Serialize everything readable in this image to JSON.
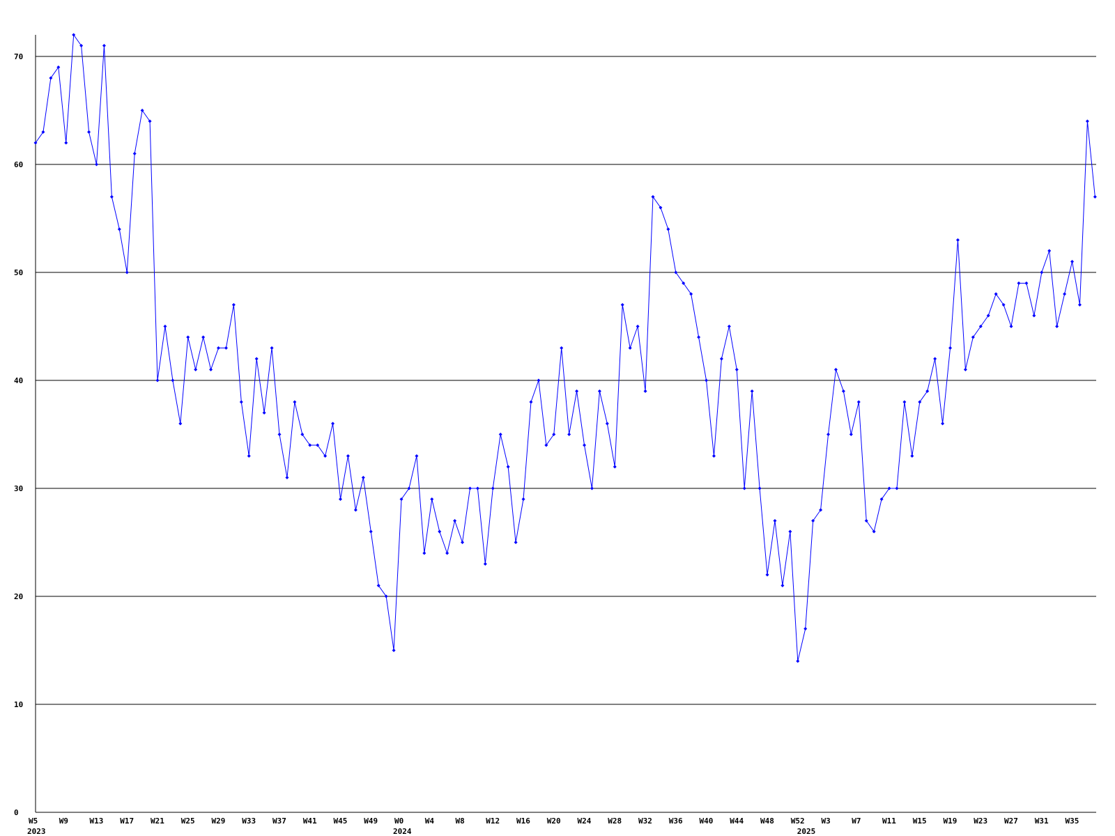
{
  "chart_data": {
    "type": "line",
    "categories": [
      "W5",
      null,
      null,
      null,
      "W9",
      null,
      null,
      null,
      "W13",
      null,
      null,
      null,
      "W17",
      null,
      null,
      null,
      "W21",
      null,
      null,
      null,
      "W25",
      null,
      null,
      null,
      "W29",
      null,
      null,
      null,
      "W33",
      null,
      null,
      null,
      "W37",
      null,
      null,
      null,
      "W41",
      null,
      null,
      null,
      "W45",
      null,
      null,
      null,
      "W49",
      null,
      null,
      null,
      "W0",
      null,
      null,
      null,
      "W4",
      null,
      null,
      null,
      "W8",
      null,
      null,
      null,
      "W12",
      null,
      null,
      null,
      "W16",
      null,
      null,
      null,
      "W20",
      null,
      null,
      null,
      "W24",
      null,
      null,
      null,
      "W28",
      null,
      null,
      null,
      "W32",
      null,
      null,
      null,
      "W36",
      null,
      null,
      null,
      "W40",
      null,
      null,
      null,
      "W44",
      null,
      null,
      null,
      "W48",
      null,
      null,
      null,
      "W52",
      null,
      null,
      null,
      "W3",
      null,
      null,
      null,
      "W7",
      null,
      null,
      null,
      "W11",
      null,
      null,
      null,
      "W15",
      null,
      null,
      null,
      "W19",
      null,
      null,
      null,
      "W23",
      null,
      null,
      null,
      "W27",
      null,
      null,
      null,
      "W31",
      null,
      null,
      null,
      "W35",
      null,
      null,
      null
    ],
    "year_labels": [
      "2023",
      null,
      null,
      null,
      null,
      null,
      null,
      null,
      null,
      null,
      null,
      null,
      null,
      null,
      null,
      null,
      null,
      null,
      null,
      null,
      null,
      null,
      null,
      null,
      null,
      null,
      null,
      null,
      null,
      null,
      null,
      null,
      null,
      null,
      null,
      null,
      null,
      null,
      null,
      null,
      null,
      null,
      null,
      null,
      null,
      null,
      null,
      null,
      "2024",
      null,
      null,
      null,
      null,
      null,
      null,
      null,
      null,
      null,
      null,
      null,
      null,
      null,
      null,
      null,
      null,
      null,
      null,
      null,
      null,
      null,
      null,
      null,
      null,
      null,
      null,
      null,
      null,
      null,
      null,
      null,
      null,
      null,
      null,
      null,
      null,
      null,
      null,
      null,
      null,
      null,
      null,
      null,
      null,
      null,
      null,
      null,
      null,
      null,
      null,
      null,
      null,
      "2025",
      null,
      null,
      null,
      null,
      null,
      null,
      null,
      null,
      null,
      null,
      null,
      null,
      null,
      null,
      null,
      null,
      null,
      null,
      null,
      null,
      null,
      null,
      null,
      null,
      null,
      null,
      null,
      null,
      null,
      null,
      null,
      null,
      null,
      null,
      null,
      null,
      null,
      null
    ],
    "series": [
      {
        "color": "#0000ff",
        "values": [
          62,
          63,
          68,
          69,
          62,
          72,
          71,
          63,
          60,
          71,
          57,
          54,
          50,
          61,
          65,
          64,
          40,
          45,
          40,
          36,
          44,
          41,
          44,
          41,
          43,
          43,
          47,
          38,
          33,
          42,
          37,
          43,
          35,
          31,
          38,
          35,
          34,
          34,
          33,
          36,
          29,
          33,
          28,
          31,
          26,
          21,
          20,
          15,
          29,
          30,
          33,
          24,
          29,
          26,
          24,
          27,
          25,
          30,
          30,
          23,
          30,
          35,
          32,
          25,
          29,
          38,
          40,
          34,
          35,
          43,
          35,
          39,
          34,
          30,
          39,
          36,
          32,
          47,
          43,
          45,
          39,
          57,
          56,
          54,
          50,
          49,
          48,
          44,
          40,
          33,
          42,
          45,
          41,
          30,
          39,
          30,
          22,
          27,
          21,
          26,
          14,
          17,
          27,
          28,
          35,
          41,
          39,
          35,
          38,
          27,
          26,
          29,
          30,
          30,
          38,
          33,
          38,
          39,
          42,
          36,
          43,
          53,
          41,
          44,
          45,
          46,
          48,
          47,
          45,
          49,
          49,
          46,
          50,
          52,
          45,
          48,
          51,
          47,
          64,
          57
        ]
      }
    ],
    "ylim": [
      0,
      72
    ],
    "yticks": [
      0,
      10,
      20,
      30,
      40,
      50,
      60,
      70
    ],
    "grid": true
  }
}
